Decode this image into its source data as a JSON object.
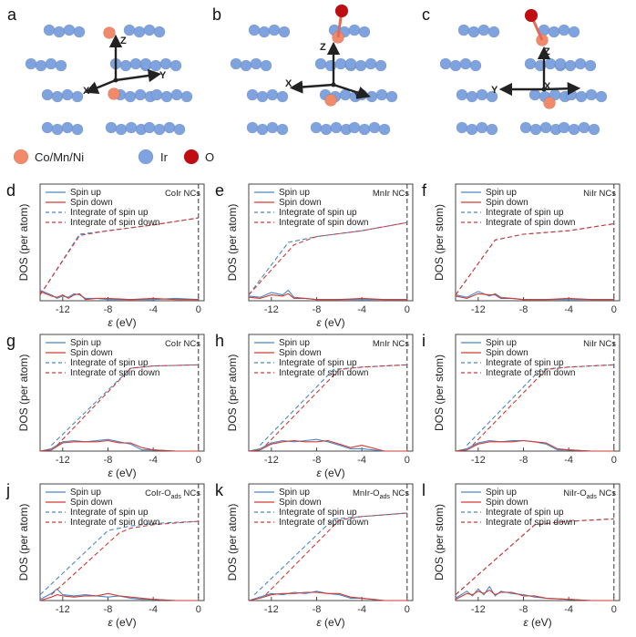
{
  "colors": {
    "spin_up": "#4a86c8",
    "spin_down": "#d03b33",
    "ir_atom": "#7fa3df",
    "metal_atom": "#f08a6a",
    "oxygen_atom": "#c00d12",
    "axis_arrow": "#222222"
  },
  "structures": [
    {
      "panel": "a",
      "axes": [
        "Z",
        "X",
        "Y"
      ],
      "adsorbate": false
    },
    {
      "panel": "b",
      "axes": [
        "Z",
        "X",
        "Y"
      ],
      "adsorbate": true
    },
    {
      "panel": "c",
      "axes": [
        "Z",
        "Y",
        "X"
      ],
      "adsorbate": true
    }
  ],
  "atom_key": {
    "metal": "Co/Mn/Ni",
    "ir": "Ir",
    "oxygen": "O"
  },
  "chart_data": [
    {
      "panel": "d",
      "type": "line",
      "system": "CoIr NCs",
      "ylabel": "DOS (per atom)",
      "xlabel": "ε (eV)",
      "xlim": [
        -14,
        0.5
      ],
      "xticks": [
        -12,
        -8,
        -4,
        0
      ],
      "ylim": [
        0,
        1
      ],
      "grid": false,
      "legend_position": "top-left",
      "series": [
        {
          "name": "Spin up",
          "x": [
            -14,
            -13,
            -12.5,
            -12,
            -11.5,
            -11,
            -10.5,
            -10,
            -9,
            -8,
            -6,
            -4,
            -2,
            0
          ],
          "y": [
            0.09,
            0.05,
            0.02,
            0.04,
            0.03,
            0.06,
            0.05,
            0.02,
            0.02,
            0.01,
            0.01,
            0.01,
            0.02,
            0.01
          ]
        },
        {
          "name": "Spin down",
          "x": [
            -14,
            -13,
            -12.5,
            -12,
            -11.5,
            -11,
            -10.5,
            -10,
            -9,
            -8,
            -6,
            -4,
            -2,
            0
          ],
          "y": [
            0.08,
            0.04,
            0.03,
            0.05,
            0.02,
            0.05,
            0.06,
            0.01,
            0.02,
            0.02,
            0.01,
            0.02,
            0.01,
            0.01
          ]
        },
        {
          "name": "Integrate of spin up",
          "x": [
            -14,
            -10.5,
            -8,
            -4,
            0
          ],
          "y": [
            0.05,
            0.57,
            0.6,
            0.65,
            0.71
          ]
        },
        {
          "name": "Integrate of spin down",
          "x": [
            -14,
            -10.5,
            -8,
            -4,
            0
          ],
          "y": [
            0.05,
            0.56,
            0.6,
            0.65,
            0.71
          ]
        }
      ]
    },
    {
      "panel": "e",
      "type": "line",
      "system": "MnIr NCs",
      "ylabel": "DOS (per atom)",
      "xlabel": "ε (eV)",
      "xlim": [
        -14,
        0.5
      ],
      "xticks": [
        -12,
        -8,
        -4,
        0
      ],
      "ylim": [
        0,
        1
      ],
      "grid": false,
      "legend_position": "top-left",
      "series": [
        {
          "name": "Spin up",
          "x": [
            -14,
            -13,
            -12,
            -11,
            -10.5,
            -10,
            -9,
            -8,
            -6,
            -4,
            -2,
            0
          ],
          "y": [
            0.04,
            0.03,
            0.07,
            0.05,
            0.09,
            0.03,
            0.02,
            0.01,
            0.01,
            0.01,
            0.01,
            0.01
          ]
        },
        {
          "name": "Spin down",
          "x": [
            -14,
            -13,
            -12,
            -11,
            -10.5,
            -10,
            -9,
            -8,
            -6,
            -4,
            -2,
            0
          ],
          "y": [
            0.03,
            0.02,
            0.05,
            0.04,
            0.06,
            0.02,
            0.02,
            0.01,
            0.01,
            0.02,
            0.01,
            0.01
          ]
        },
        {
          "name": "Integrate of spin up",
          "x": [
            -14,
            -10.5,
            -8,
            -4,
            0
          ],
          "y": [
            0.05,
            0.5,
            0.55,
            0.6,
            0.67
          ]
        },
        {
          "name": "Integrate of spin down",
          "x": [
            -14,
            -10,
            -8,
            -4,
            0
          ],
          "y": [
            0.05,
            0.48,
            0.55,
            0.6,
            0.67
          ]
        }
      ]
    },
    {
      "panel": "f",
      "type": "line",
      "system": "NiIr NCs",
      "ylabel": "DOS (per stom)",
      "xlabel": "",
      "xlim": [
        -14,
        0.5
      ],
      "xticks": [
        -12,
        -8,
        -4,
        0
      ],
      "ylim": [
        0,
        1
      ],
      "grid": false,
      "legend_position": "top-left",
      "series": [
        {
          "name": "Spin up",
          "x": [
            -14,
            -13,
            -12,
            -11,
            -10.5,
            -10,
            -9,
            -8,
            -6,
            -4,
            -2,
            0
          ],
          "y": [
            0.05,
            0.03,
            0.08,
            0.04,
            0.06,
            0.03,
            0.02,
            0.01,
            0.01,
            0.01,
            0.01,
            0.01
          ]
        },
        {
          "name": "Spin down",
          "x": [
            -14,
            -13,
            -12,
            -11,
            -10.5,
            -10,
            -9,
            -8,
            -6,
            -4,
            -2,
            0
          ],
          "y": [
            0.04,
            0.02,
            0.06,
            0.05,
            0.05,
            0.02,
            0.02,
            0.01,
            0.01,
            0.02,
            0.01,
            0.01
          ]
        },
        {
          "name": "Integrate of spin up",
          "x": [
            -14,
            -10.5,
            -8,
            -4,
            0
          ],
          "y": [
            0.05,
            0.52,
            0.57,
            0.6,
            0.66
          ]
        },
        {
          "name": "Integrate of spin down",
          "x": [
            -14,
            -10.5,
            -8,
            -4,
            0
          ],
          "y": [
            0.05,
            0.52,
            0.57,
            0.6,
            0.66
          ]
        }
      ]
    },
    {
      "panel": "g",
      "type": "line",
      "system": "CoIr NCs",
      "ylabel": "DOS (per atom)",
      "xlabel": "ε (eV)",
      "xlim": [
        -14,
        0.5
      ],
      "xticks": [
        -12,
        -8,
        -4,
        0
      ],
      "ylim": [
        0,
        1
      ],
      "grid": false,
      "legend_position": "top-left",
      "series": [
        {
          "name": "Spin up",
          "x": [
            -14,
            -13,
            -12,
            -11,
            -10,
            -9,
            -8,
            -7,
            -6,
            -5,
            -4,
            -2,
            0
          ],
          "y": [
            0.0,
            0.02,
            0.08,
            0.09,
            0.08,
            0.09,
            0.1,
            0.08,
            0.06,
            0.01,
            0.01,
            0.0,
            0.0
          ]
        },
        {
          "name": "Spin down",
          "x": [
            -14,
            -13,
            -12,
            -11,
            -10,
            -9,
            -8,
            -7,
            -6,
            -5,
            -4,
            -2,
            0
          ],
          "y": [
            0.0,
            0.01,
            0.07,
            0.08,
            0.08,
            0.08,
            0.09,
            0.07,
            0.07,
            0.03,
            0.01,
            0.0,
            0.0
          ]
        },
        {
          "name": "Integrate of spin up",
          "x": [
            -13,
            -6,
            -4,
            0
          ],
          "y": [
            0.05,
            0.71,
            0.73,
            0.74
          ]
        },
        {
          "name": "Integrate of spin down",
          "x": [
            -12.5,
            -6,
            -4,
            0
          ],
          "y": [
            0.05,
            0.71,
            0.73,
            0.74
          ]
        }
      ]
    },
    {
      "panel": "h",
      "type": "line",
      "system": "MnIr NCs",
      "ylabel": "DOS (per atom)",
      "xlabel": "ε (eV)",
      "xlim": [
        -14,
        0.5
      ],
      "xticks": [
        -12,
        -8,
        -4,
        0
      ],
      "ylim": [
        0,
        1
      ],
      "grid": false,
      "legend_position": "top-left",
      "series": [
        {
          "name": "Spin up",
          "x": [
            -14,
            -13,
            -12,
            -11,
            -10,
            -9,
            -8,
            -7,
            -6,
            -5,
            -4,
            -2,
            0
          ],
          "y": [
            0.0,
            0.02,
            0.07,
            0.09,
            0.08,
            0.09,
            0.1,
            0.08,
            0.05,
            0.02,
            0.02,
            0.0,
            0.0
          ]
        },
        {
          "name": "Spin down",
          "x": [
            -14,
            -13,
            -12,
            -11,
            -10,
            -9,
            -8,
            -7,
            -6,
            -5,
            -4,
            -2,
            0
          ],
          "y": [
            0.0,
            0.01,
            0.06,
            0.08,
            0.09,
            0.08,
            0.08,
            0.09,
            0.06,
            0.03,
            0.05,
            0.0,
            0.0
          ]
        },
        {
          "name": "Integrate of spin up",
          "x": [
            -13,
            -6.5,
            -4,
            0
          ],
          "y": [
            0.05,
            0.7,
            0.72,
            0.74
          ]
        },
        {
          "name": "Integrate of spin down",
          "x": [
            -12.5,
            -6,
            -4,
            0
          ],
          "y": [
            0.05,
            0.7,
            0.72,
            0.74
          ]
        }
      ]
    },
    {
      "panel": "i",
      "type": "line",
      "system": "NiIr NCs",
      "ylabel": "DOS (per stom)",
      "xlabel": "",
      "xlim": [
        -14,
        0.5
      ],
      "xticks": [
        -12,
        -8,
        -4,
        0
      ],
      "ylim": [
        0,
        1
      ],
      "grid": false,
      "legend_position": "top-left",
      "series": [
        {
          "name": "Spin up",
          "x": [
            -14,
            -13,
            -12,
            -11,
            -10,
            -9,
            -8,
            -7,
            -6,
            -5,
            -4,
            -2,
            0
          ],
          "y": [
            0.0,
            0.02,
            0.07,
            0.09,
            0.08,
            0.09,
            0.09,
            0.08,
            0.06,
            0.01,
            0.01,
            0.0,
            0.0
          ]
        },
        {
          "name": "Spin down",
          "x": [
            -14,
            -13,
            -12,
            -11,
            -10,
            -9,
            -8,
            -7,
            -6,
            -5,
            -4,
            -2,
            0
          ],
          "y": [
            0.0,
            0.01,
            0.06,
            0.08,
            0.08,
            0.08,
            0.09,
            0.08,
            0.07,
            0.02,
            0.01,
            0.0,
            0.0
          ]
        },
        {
          "name": "Integrate of spin up",
          "x": [
            -13,
            -6.5,
            -4,
            0
          ],
          "y": [
            0.05,
            0.7,
            0.72,
            0.74
          ]
        },
        {
          "name": "Integrate of spin down",
          "x": [
            -12.5,
            -6,
            -4,
            0
          ],
          "y": [
            0.05,
            0.7,
            0.72,
            0.74
          ]
        }
      ]
    },
    {
      "panel": "j",
      "type": "line",
      "system": "CoIr-O",
      "system_sub": "ads",
      "system_tail": " NCs",
      "ylabel": "DOS (per atom)",
      "xlabel": "ε (eV)",
      "xlim": [
        -14,
        0.5
      ],
      "xticks": [
        -12,
        -8,
        -4,
        0
      ],
      "ylim": [
        0,
        1
      ],
      "grid": false,
      "legend_position": "top-left",
      "series": [
        {
          "name": "Spin up",
          "x": [
            -14,
            -13,
            -12.5,
            -12,
            -11,
            -10,
            -9,
            -8,
            -7,
            -6,
            -5,
            -4,
            -2,
            0
          ],
          "y": [
            0.01,
            0.06,
            0.1,
            0.05,
            0.04,
            0.05,
            0.04,
            0.03,
            0.04,
            0.02,
            0.01,
            0.01,
            0.0,
            0.0
          ]
        },
        {
          "name": "Spin down",
          "x": [
            -14,
            -13,
            -12.5,
            -12,
            -11,
            -10,
            -9,
            -8,
            -7,
            -6,
            -5,
            -4,
            -2,
            0
          ],
          "y": [
            0.0,
            0.03,
            0.05,
            0.04,
            0.03,
            0.04,
            0.04,
            0.06,
            0.04,
            0.03,
            0.02,
            0.01,
            0.0,
            0.0
          ]
        },
        {
          "name": "Integrate of spin up",
          "x": [
            -14,
            -8,
            -6,
            -4,
            0
          ],
          "y": [
            0.05,
            0.6,
            0.64,
            0.66,
            0.68
          ]
        },
        {
          "name": "Integrate of spin down",
          "x": [
            -13,
            -7,
            -6,
            -4,
            0
          ],
          "y": [
            0.05,
            0.58,
            0.62,
            0.65,
            0.68
          ]
        }
      ]
    },
    {
      "panel": "k",
      "type": "line",
      "system": "MnIr-O",
      "system_sub": "ads",
      "system_tail": " NCs",
      "ylabel": "DOS (per atom)",
      "xlabel": "ε (eV)",
      "xlim": [
        -14,
        0.5
      ],
      "xticks": [
        -12,
        -8,
        -4,
        0
      ],
      "ylim": [
        0,
        1
      ],
      "grid": false,
      "legend_position": "top-left",
      "series": [
        {
          "name": "Spin up",
          "x": [
            -14,
            -13,
            -12,
            -11,
            -10,
            -9,
            -8,
            -7,
            -6,
            -5,
            -4,
            -2,
            0
          ],
          "y": [
            0.0,
            0.03,
            0.06,
            0.05,
            0.07,
            0.06,
            0.08,
            0.06,
            0.05,
            0.02,
            0.02,
            0.0,
            0.0
          ]
        },
        {
          "name": "Spin down",
          "x": [
            -14,
            -13,
            -12,
            -11,
            -10,
            -9,
            -8,
            -7,
            -6,
            -5,
            -4,
            -2,
            0
          ],
          "y": [
            0.0,
            0.02,
            0.05,
            0.06,
            0.06,
            0.07,
            0.07,
            0.06,
            0.06,
            0.03,
            0.02,
            0.0,
            0.0
          ]
        },
        {
          "name": "Integrate of spin up",
          "x": [
            -13.5,
            -6.5,
            -4,
            0
          ],
          "y": [
            0.05,
            0.7,
            0.72,
            0.75
          ]
        },
        {
          "name": "Integrate of spin down",
          "x": [
            -12.5,
            -6,
            -4,
            0
          ],
          "y": [
            0.05,
            0.69,
            0.72,
            0.75
          ]
        }
      ]
    },
    {
      "panel": "l",
      "type": "line",
      "system": "NiIr-O",
      "system_sub": "ads",
      "system_tail": " NCs",
      "ylabel": "DOS (per stom)",
      "xlabel": "ε (eV)",
      "xlim": [
        -14,
        0.5
      ],
      "xticks": [
        -12,
        -8,
        -4,
        0
      ],
      "ylim": [
        0,
        1
      ],
      "grid": false,
      "legend_position": "top-left",
      "series": [
        {
          "name": "Spin up",
          "x": [
            -14,
            -13,
            -12.5,
            -12,
            -11.5,
            -11,
            -10.5,
            -10,
            -9,
            -8,
            -7,
            -6,
            -4,
            -2,
            0
          ],
          "y": [
            0.02,
            0.08,
            0.04,
            0.1,
            0.05,
            0.12,
            0.04,
            0.08,
            0.06,
            0.05,
            0.03,
            0.02,
            0.01,
            0.0,
            0.0
          ]
        },
        {
          "name": "Spin down",
          "x": [
            -14,
            -13,
            -12.5,
            -12,
            -11.5,
            -11,
            -10.5,
            -10,
            -9,
            -8,
            -7,
            -6,
            -4,
            -2,
            0
          ],
          "y": [
            0.01,
            0.06,
            0.05,
            0.08,
            0.06,
            0.09,
            0.05,
            0.07,
            0.07,
            0.04,
            0.04,
            0.02,
            0.01,
            0.0,
            0.0
          ]
        },
        {
          "name": "Integrate of spin up",
          "x": [
            -14,
            -7,
            -4,
            0
          ],
          "y": [
            0.05,
            0.65,
            0.68,
            0.7
          ]
        },
        {
          "name": "Integrate of spin down",
          "x": [
            -14,
            -7,
            -4,
            0
          ],
          "y": [
            0.05,
            0.65,
            0.68,
            0.7
          ]
        }
      ]
    }
  ]
}
